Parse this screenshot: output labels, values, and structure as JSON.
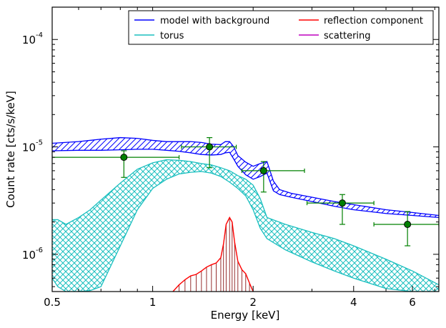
{
  "chart_data": {
    "type": "line",
    "xlabel": "Energy [keV]",
    "ylabel": "Count rate [cts/s/keV]",
    "x_scale": "log",
    "y_scale": "log",
    "xlim": [
      0.5,
      7.2
    ],
    "ylim": [
      4.5e-07,
      0.0002
    ],
    "x_ticks": [
      0.5,
      1,
      2,
      4,
      6
    ],
    "x_tick_labels": [
      "0.5",
      "1",
      "2",
      "4",
      "6"
    ],
    "y_ticks": [
      1e-06,
      1e-05,
      0.0001
    ],
    "y_tick_labels": [
      [
        "10",
        "-6"
      ],
      [
        "10",
        "-5"
      ],
      [
        "10",
        "-4"
      ]
    ],
    "grid": false,
    "legend_placement": "top-right",
    "legend": [
      {
        "label": "model with background",
        "color": "#0000ff"
      },
      {
        "label": "torus",
        "color": "#1abfbf"
      },
      {
        "label": "reflection component",
        "color": "#ff0000"
      },
      {
        "label": "scattering",
        "color": "#bf00bf"
      }
    ],
    "series": [
      {
        "name": "model with background",
        "color": "#0000ff",
        "x": [
          0.5,
          0.6,
          0.7,
          0.8,
          0.9,
          1.0,
          1.1,
          1.2,
          1.3,
          1.4,
          1.5,
          1.6,
          1.65,
          1.7,
          1.75,
          1.8,
          1.9,
          2.0,
          2.1,
          2.2,
          2.3,
          2.4,
          2.6,
          3.0,
          3.5,
          4.0,
          5.0,
          6.0,
          7.2
        ],
        "upper": [
          1.08e-05,
          1.12e-05,
          1.18e-05,
          1.22e-05,
          1.2e-05,
          1.15e-05,
          1.12e-05,
          1.12e-05,
          1.12e-05,
          1.1e-05,
          1.06e-05,
          1.05e-05,
          1.12e-05,
          1.12e-05,
          1e-05,
          8.3e-06,
          7.2e-06,
          6.6e-06,
          7e-06,
          7.3e-06,
          4.8e-06,
          4e-06,
          3.7e-06,
          3.4e-06,
          3.1e-06,
          2.9e-06,
          2.6e-06,
          2.45e-06,
          2.3e-06
        ],
        "lower": [
          9.2e-06,
          9.3e-06,
          9.3e-06,
          9.4e-06,
          9.5e-06,
          9.5e-06,
          9.3e-06,
          9.1e-06,
          8.8e-06,
          8.5e-06,
          8.4e-06,
          8.5e-06,
          8.8e-06,
          8.9e-06,
          7.7e-06,
          6.6e-06,
          5.5e-06,
          5e-06,
          5.3e-06,
          5.7e-06,
          3.9e-06,
          3.6e-06,
          3.4e-06,
          3.1e-06,
          2.8e-06,
          2.6e-06,
          2.4e-06,
          2.3e-06,
          2.2e-06
        ],
        "hatch": "diagonal"
      },
      {
        "name": "torus",
        "color": "#1abfbf",
        "x": [
          0.5,
          0.52,
          0.55,
          0.6,
          0.65,
          0.7,
          0.8,
          0.9,
          1.0,
          1.1,
          1.2,
          1.3,
          1.4,
          1.5,
          1.6,
          1.7,
          1.8,
          1.9,
          2.0,
          2.1,
          2.2,
          2.5,
          3.0,
          3.5,
          4.0,
          5.0,
          6.0,
          7.2
        ],
        "upper": [
          2.1e-06,
          2.1e-06,
          1.9e-06,
          2.2e-06,
          2.6e-06,
          3.2e-06,
          4.6e-06,
          6.2e-06,
          7.1e-06,
          7.6e-06,
          7.5e-06,
          7.3e-06,
          7e-06,
          6.8e-06,
          6.4e-06,
          6e-06,
          5.4e-06,
          5e-06,
          4.4e-06,
          3.3e-06,
          2.2e-06,
          1.9e-06,
          1.6e-06,
          1.4e-06,
          1.2e-06,
          9e-07,
          7e-07,
          5.2e-07
        ],
        "lower": [
          6e-07,
          5e-07,
          4.5e-07,
          4.5e-07,
          4.6e-07,
          5e-07,
          1.2e-06,
          2.6e-06,
          4.1e-06,
          5e-06,
          5.6e-06,
          5.8e-06,
          5.9e-06,
          5.7e-06,
          5.3e-06,
          4.7e-06,
          4.1e-06,
          3.5e-06,
          2.6e-06,
          1.75e-06,
          1.4e-06,
          1.1e-06,
          8.5e-07,
          7e-07,
          6e-07,
          4.8e-07,
          4.5e-07,
          4.5e-07
        ],
        "hatch": "cross"
      },
      {
        "name": "reflection component",
        "color": "#ff0000",
        "x": [
          1.15,
          1.2,
          1.25,
          1.3,
          1.35,
          1.4,
          1.45,
          1.5,
          1.55,
          1.6,
          1.63,
          1.66,
          1.7,
          1.73,
          1.76,
          1.8,
          1.85,
          1.9,
          1.95,
          2.0
        ],
        "y": [
          4.5e-07,
          5.2e-07,
          5.8e-07,
          6.3e-07,
          6.5e-07,
          7e-07,
          7.6e-07,
          8e-07,
          8.3e-07,
          9.3e-07,
          1.25e-06,
          1.9e-06,
          2.2e-06,
          2e-06,
          1.3e-06,
          8.6e-07,
          7.2e-07,
          6.6e-07,
          5.4e-07,
          4.5e-07
        ]
      },
      {
        "name": "scattering",
        "color": "#bf00bf",
        "x": [],
        "y": []
      },
      {
        "name": "data",
        "color": "#008000",
        "points": [
          {
            "x": 0.82,
            "y": 8e-06,
            "xerr": [
              0.5,
              1.2
            ],
            "yerr": [
              5.2e-06,
              9.2e-06
            ]
          },
          {
            "x": 1.48,
            "y": 1e-05,
            "xerr": [
              1.22,
              1.78
            ],
            "yerr": [
              6.4e-06,
              1.22e-05
            ]
          },
          {
            "x": 2.15,
            "y": 6e-06,
            "xerr": [
              1.85,
              2.85
            ],
            "yerr": [
              3.8e-06,
              7.3e-06
            ]
          },
          {
            "x": 3.7,
            "y": 3e-06,
            "xerr": [
              2.9,
              4.6
            ],
            "yerr": [
              1.9e-06,
              3.6e-06
            ]
          },
          {
            "x": 5.8,
            "y": 1.9e-06,
            "xerr": [
              4.6,
              7.2
            ],
            "yerr": [
              1.2e-06,
              2.5e-06
            ]
          }
        ]
      }
    ]
  }
}
